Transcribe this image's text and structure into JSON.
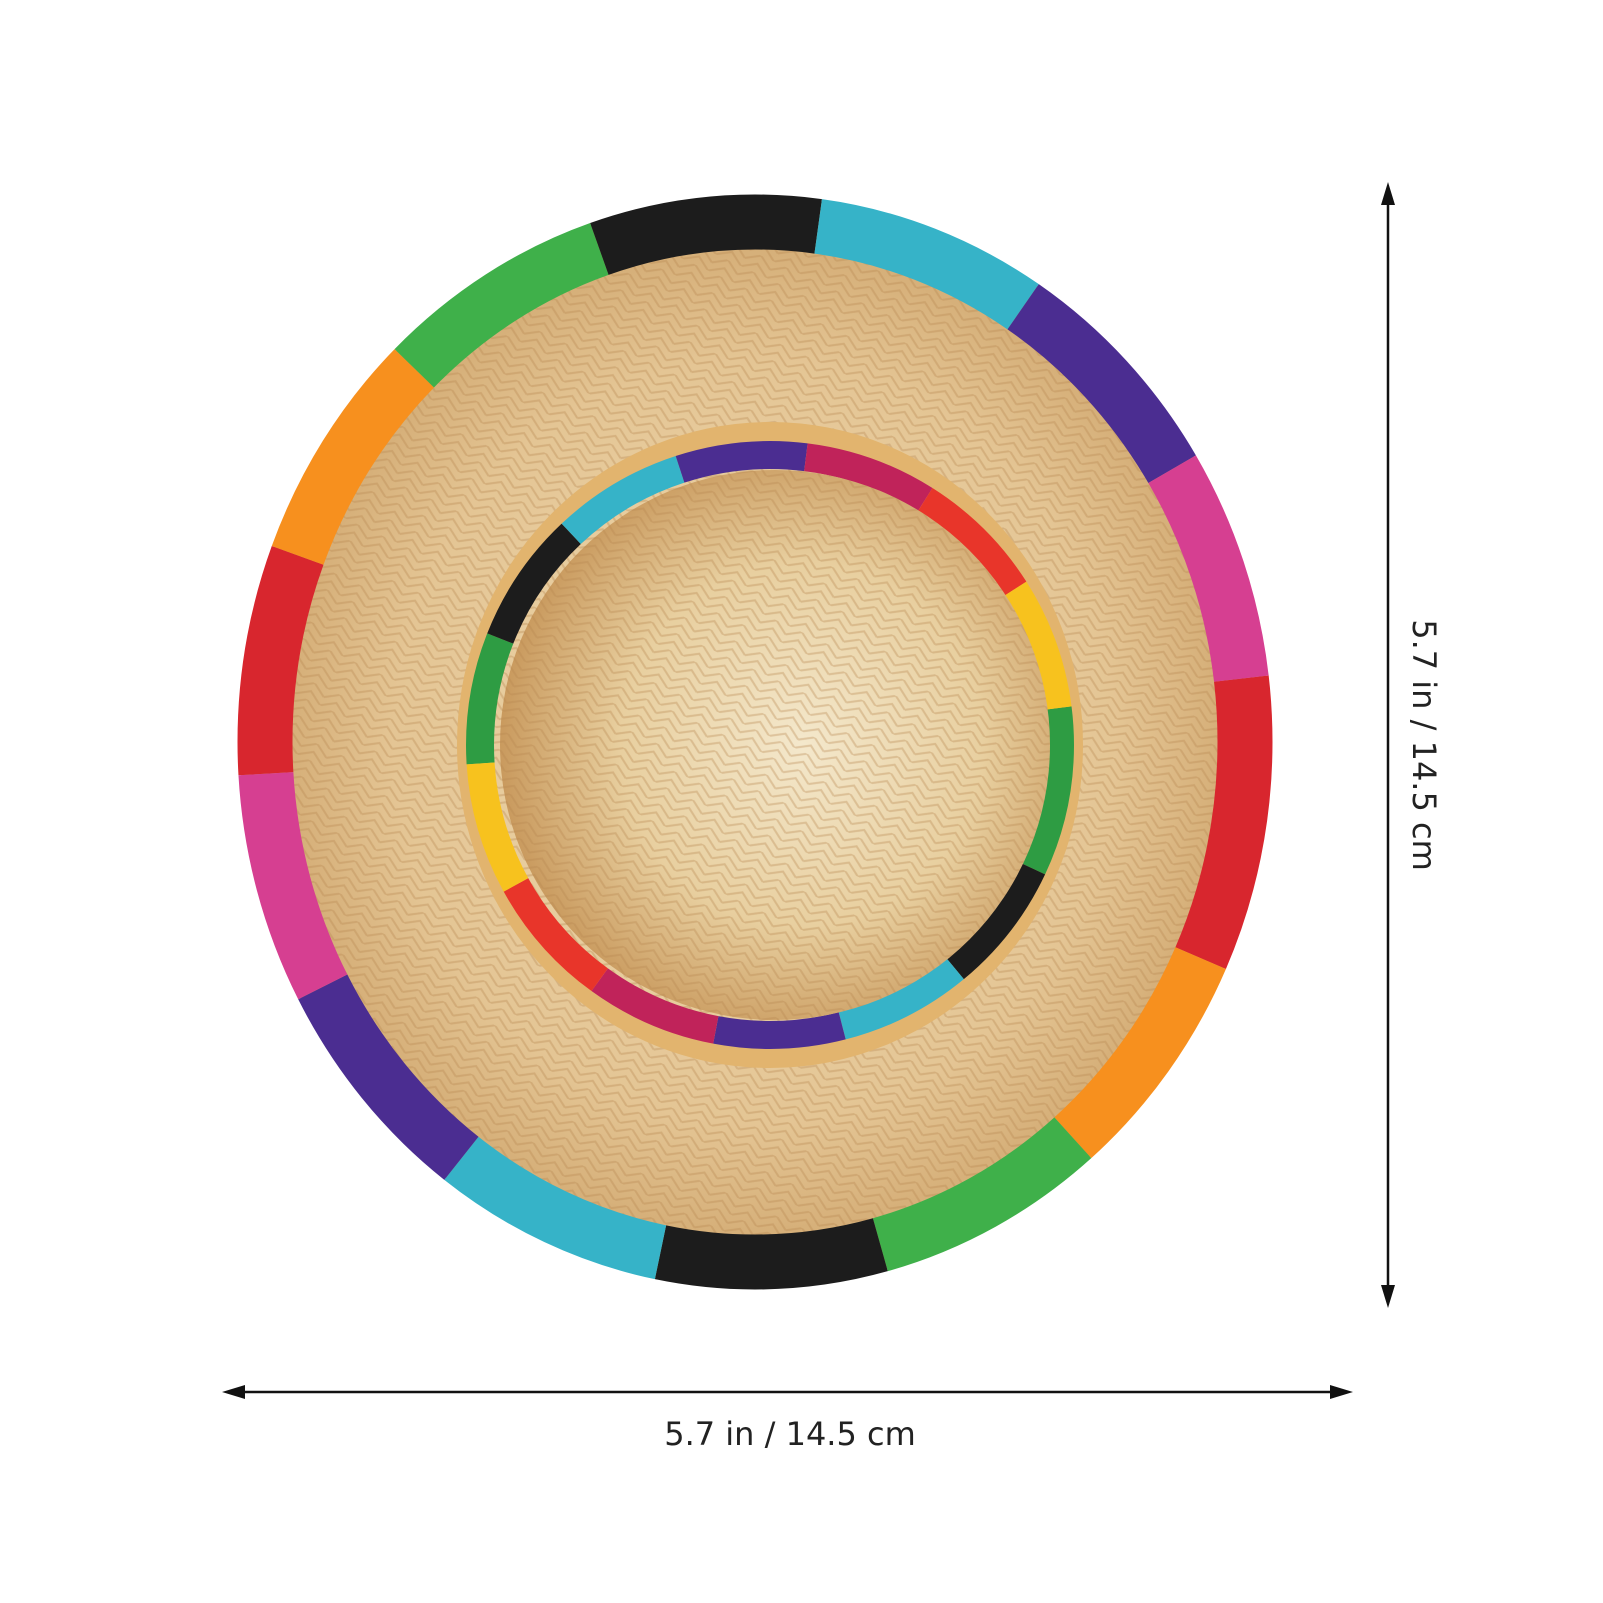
{
  "dimensions": {
    "width_label": "5.7 in / 14.5 cm",
    "height_label": "5.7 in / 14.5 cm"
  }
}
